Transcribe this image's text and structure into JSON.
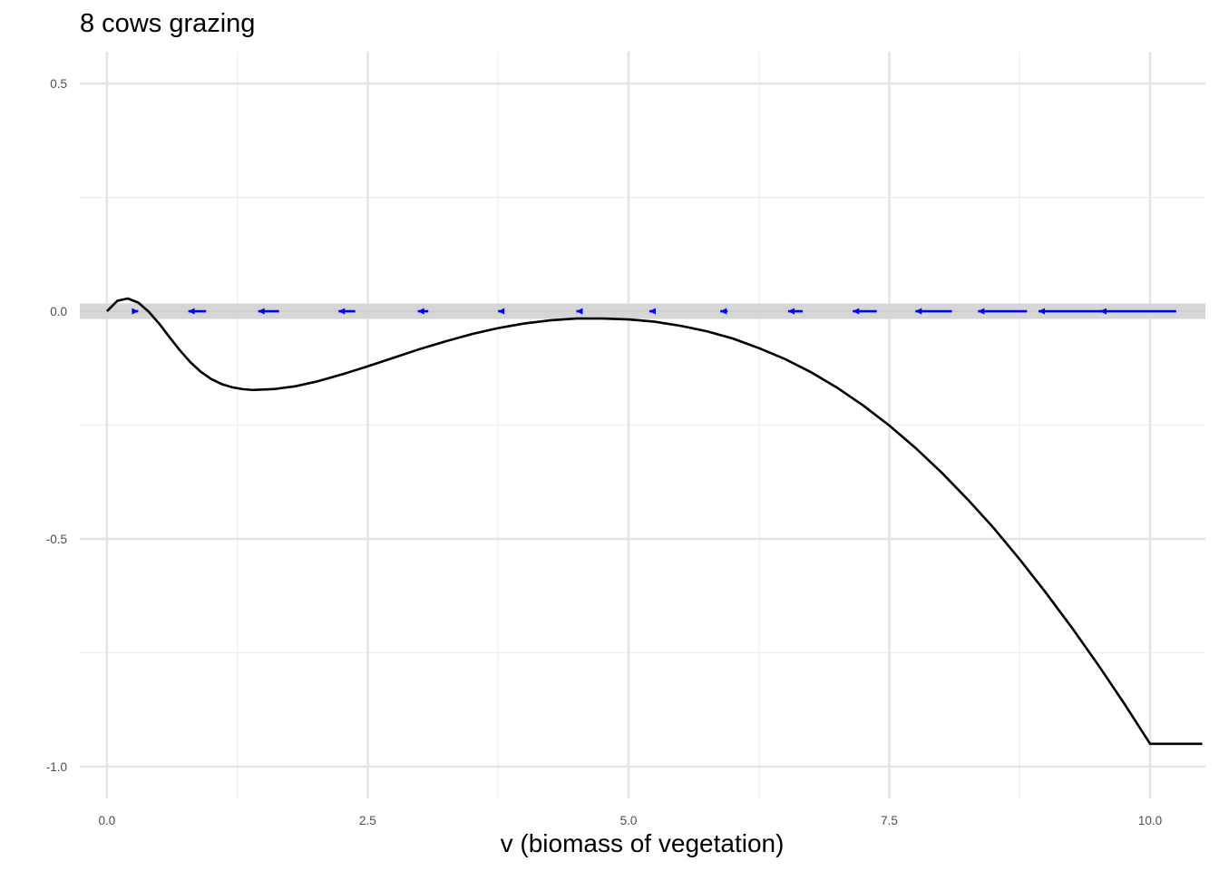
{
  "chart_data": {
    "type": "line",
    "title": "8 cows grazing",
    "xlabel": "v (biomass of vegetation)",
    "ylabel": "",
    "xlim": [
      -0.26,
      10.53
    ],
    "ylim": [
      -1.07,
      0.57
    ],
    "x_ticks": [
      0.0,
      2.5,
      5.0,
      7.5,
      10.0
    ],
    "x_tick_labels": [
      "0.0",
      "2.5",
      "5.0",
      "7.5",
      "10.0"
    ],
    "y_ticks": [
      0.5,
      0.0,
      -0.5,
      -1.0
    ],
    "y_tick_labels": [
      "0.5",
      "0.0",
      "-0.5",
      "-1.0"
    ],
    "grid": true,
    "zero_band": {
      "ymin": -0.017,
      "ymax": 0.017
    },
    "series": [
      {
        "type": "line",
        "color": "#000000",
        "x": [
          0.0,
          0.1,
          0.2,
          0.3,
          0.4,
          0.5,
          0.6,
          0.7,
          0.8,
          0.9,
          1.0,
          1.1,
          1.2,
          1.3,
          1.4,
          1.5,
          1.6,
          1.8,
          2.0,
          2.25,
          2.5,
          2.75,
          3.0,
          3.25,
          3.5,
          3.75,
          4.0,
          4.25,
          4.5,
          4.75,
          5.0,
          5.25,
          5.5,
          5.75,
          6.0,
          6.25,
          6.5,
          6.75,
          7.0,
          7.25,
          7.5,
          7.75,
          8.0,
          8.25,
          8.5,
          8.75,
          9.0,
          9.25,
          9.5,
          9.75,
          10.0,
          10.25,
          10.5
        ],
        "y": [
          0.0,
          0.023,
          0.028,
          0.019,
          -0.001,
          -0.027,
          -0.057,
          -0.086,
          -0.112,
          -0.133,
          -0.149,
          -0.16,
          -0.167,
          -0.171,
          -0.173,
          -0.172,
          -0.171,
          -0.165,
          -0.155,
          -0.139,
          -0.121,
          -0.102,
          -0.083,
          -0.066,
          -0.05,
          -0.037,
          -0.027,
          -0.02,
          -0.016,
          -0.016,
          -0.018,
          -0.023,
          -0.032,
          -0.044,
          -0.06,
          -0.081,
          -0.105,
          -0.134,
          -0.168,
          -0.207,
          -0.251,
          -0.3,
          -0.354,
          -0.413,
          -0.476,
          -0.545,
          -0.618,
          -0.695,
          -0.776,
          -0.861,
          -0.95,
          -0.95,
          -0.95
        ]
      }
    ],
    "arrows": {
      "color": "#0000ff",
      "y": 0.0,
      "segments": [
        {
          "from": 0.25,
          "to": 0.3
        },
        {
          "from": 0.95,
          "to": 0.78
        },
        {
          "from": 1.65,
          "to": 1.45
        },
        {
          "from": 2.38,
          "to": 2.22
        },
        {
          "from": 3.08,
          "to": 2.98
        },
        {
          "from": 3.8,
          "to": 3.75
        },
        {
          "from": 4.53,
          "to": 4.5
        },
        {
          "from": 5.24,
          "to": 5.2
        },
        {
          "from": 5.95,
          "to": 5.88
        },
        {
          "from": 6.67,
          "to": 6.53
        },
        {
          "from": 7.38,
          "to": 7.15
        },
        {
          "from": 8.1,
          "to": 7.75
        },
        {
          "from": 8.82,
          "to": 8.35
        },
        {
          "from": 9.53,
          "to": 8.93
        },
        {
          "from": 10.25,
          "to": 9.52
        }
      ]
    }
  }
}
